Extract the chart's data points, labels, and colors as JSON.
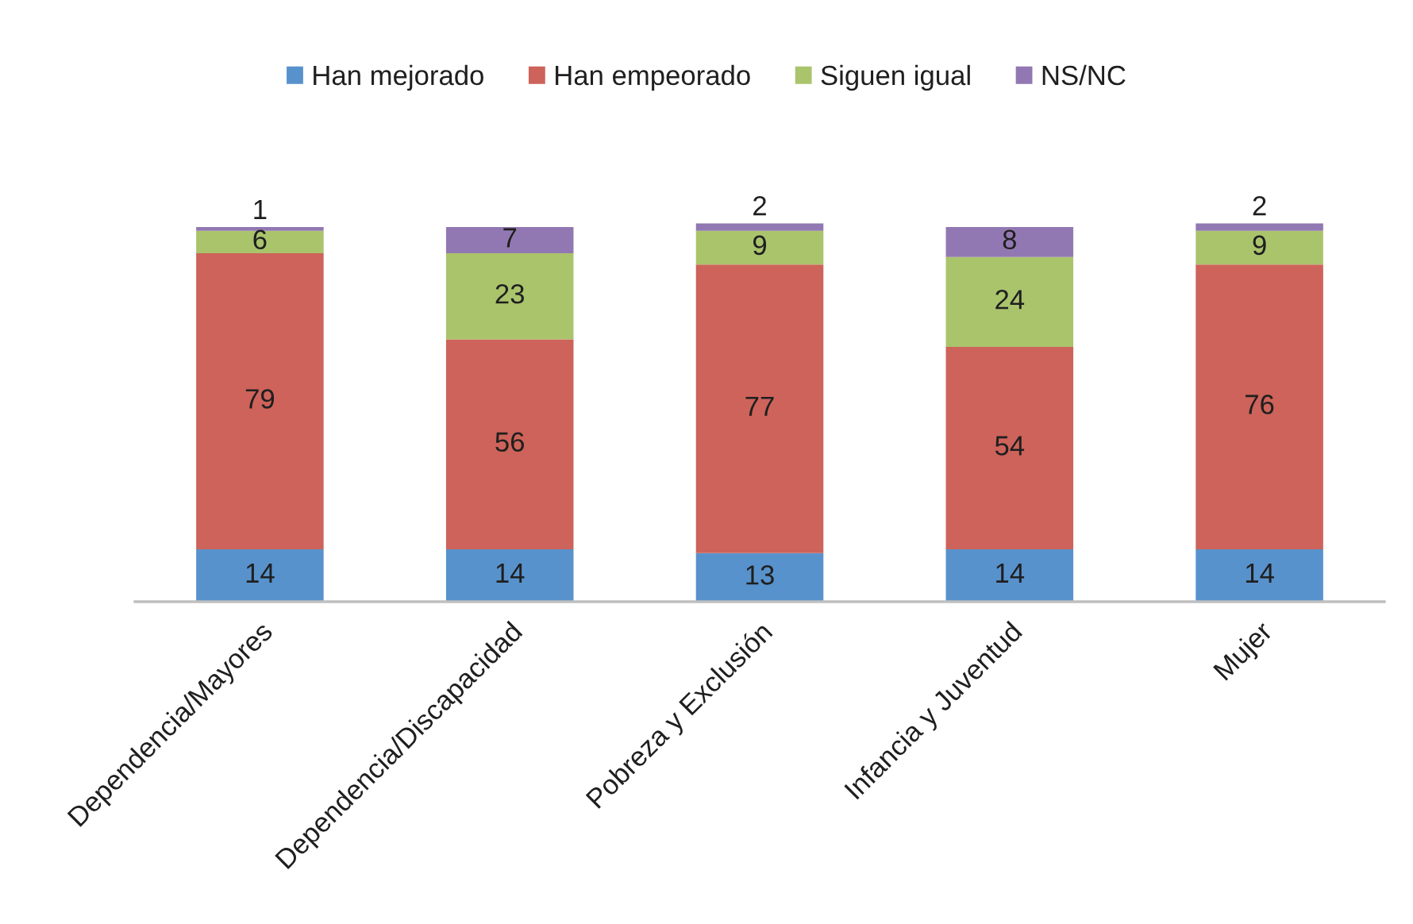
{
  "chart_data": {
    "type": "bar",
    "stacked": true,
    "categories": [
      "Dependencia/Mayores",
      "Dependencia/Discapacidad",
      "Pobreza y Exclusión",
      "Infancia y Juventud",
      "Mujer"
    ],
    "series": [
      {
        "name": "Han mejorado",
        "color": "#5892cc",
        "values": [
          14,
          14,
          13,
          14,
          14
        ]
      },
      {
        "name": "Han empeorado",
        "color": "#cd635a",
        "values": [
          79,
          56,
          77,
          54,
          76
        ]
      },
      {
        "name": "Siguen igual",
        "color": "#aac46c",
        "values": [
          6,
          23,
          9,
          24,
          9
        ]
      },
      {
        "name": "NS/NC",
        "color": "#9278b2",
        "values": [
          1,
          7,
          2,
          8,
          2
        ]
      }
    ],
    "data_labels": true,
    "legend": "top",
    "tick_labels": "x"
  }
}
